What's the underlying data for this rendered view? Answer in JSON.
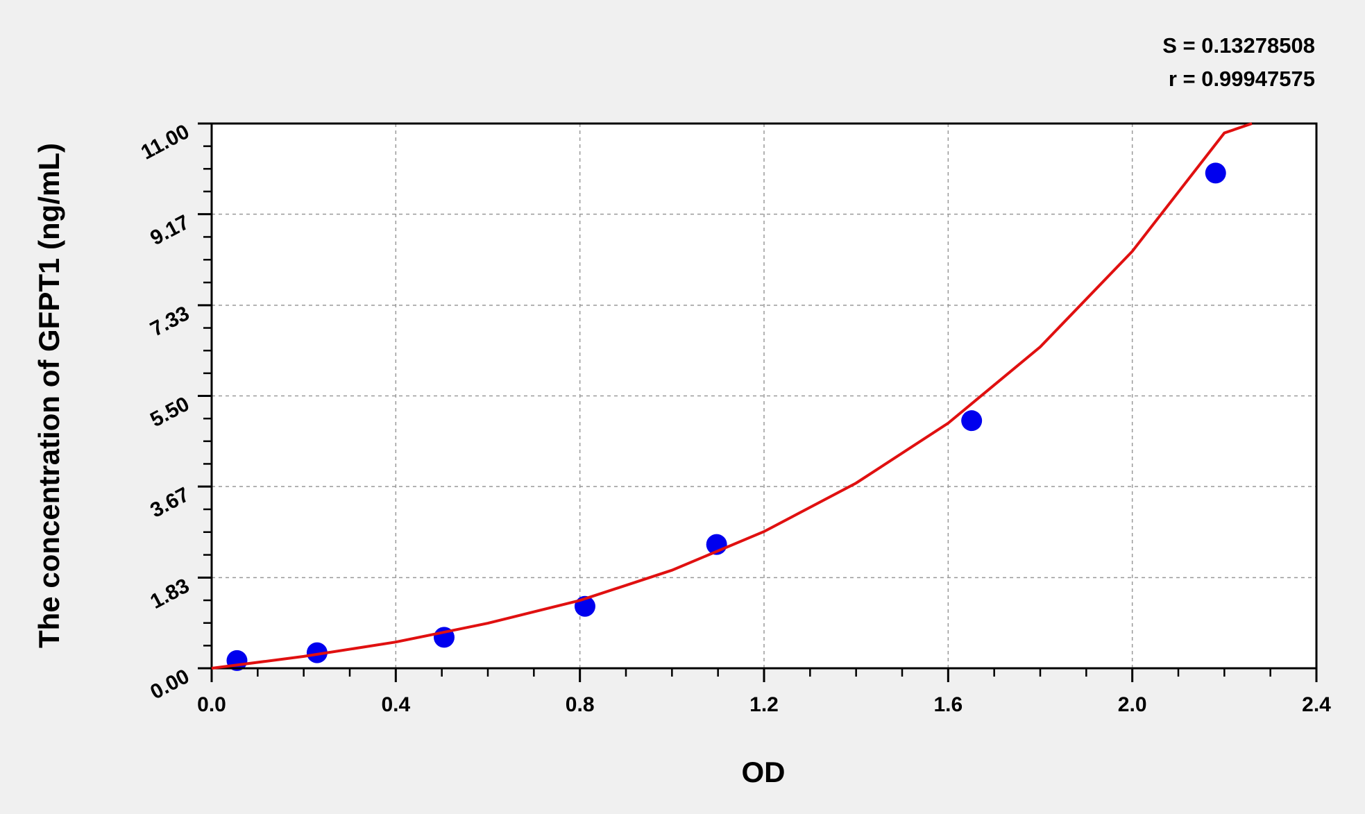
{
  "chart_data": {
    "type": "scatter",
    "title": "",
    "xlabel": "OD",
    "ylabel": "The concentration of GFPT1 (ng/mL)",
    "xlim": [
      0,
      2.4
    ],
    "ylim": [
      0,
      11
    ],
    "x_ticks": [
      "0.0",
      "0.4",
      "0.8",
      "1.2",
      "1.6",
      "2.0",
      "2.4"
    ],
    "y_ticks": [
      "0.00",
      "1.83",
      "3.67",
      "5.50",
      "7.33",
      "9.17",
      "11.00"
    ],
    "grid": true,
    "stats": [
      "S = 0.13278508",
      "r = 0.99947575"
    ],
    "colors": {
      "points": "#0000ee",
      "curve": "#e01010",
      "background": "#f0f0f0",
      "plot": "#ffffff"
    },
    "points": {
      "x": [
        0.055,
        0.229,
        0.505,
        0.811,
        1.097,
        1.651,
        2.181
      ],
      "y": [
        0.156,
        0.313,
        0.625,
        1.25,
        2.5,
        5.0,
        10.0
      ]
    },
    "fit_curve": {
      "x": [
        0,
        0.2,
        0.4,
        0.6,
        0.8,
        1.0,
        1.2,
        1.4,
        1.6,
        1.8,
        2.0,
        2.2,
        2.26
      ],
      "y": [
        0,
        0.24,
        0.53,
        0.91,
        1.37,
        1.98,
        2.76,
        3.74,
        4.95,
        6.49,
        8.42,
        10.81,
        11.0
      ]
    }
  }
}
